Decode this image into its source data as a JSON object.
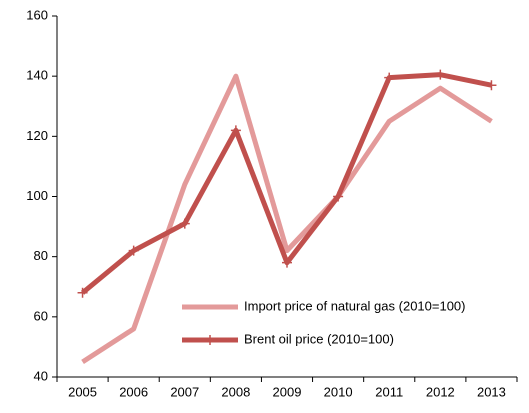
{
  "chart_data": {
    "type": "line",
    "categories": [
      "2005",
      "2006",
      "2007",
      "2008",
      "2009",
      "2010",
      "2011",
      "2012",
      "2013"
    ],
    "series": [
      {
        "name": "Import price of natural gas (2010=100)",
        "color": "#e39a9a",
        "values": [
          45,
          56,
          104,
          140,
          82,
          100,
          125,
          136,
          125
        ]
      },
      {
        "name": "Brent oil price (2010=100)",
        "color": "#c0504d",
        "values": [
          68,
          82,
          91,
          122,
          78,
          100,
          139.5,
          140.5,
          137
        ],
        "marker": "+"
      }
    ],
    "ylim": [
      40,
      160
    ],
    "yticks": [
      40,
      60,
      80,
      100,
      120,
      140,
      160
    ],
    "grid": false,
    "legend": "lower right"
  }
}
